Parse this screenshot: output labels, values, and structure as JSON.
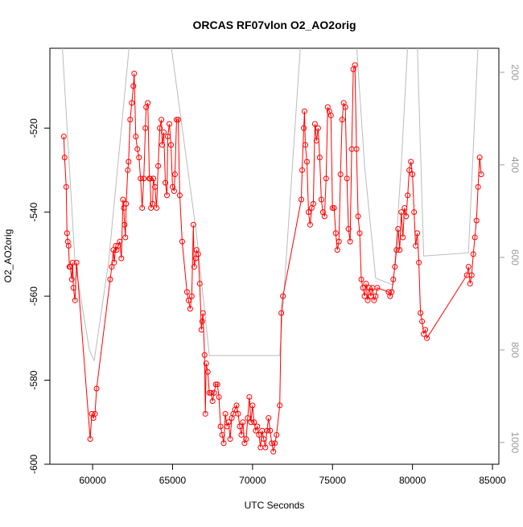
{
  "chart_data": {
    "type": "line",
    "title": "ORCAS RF07vlon O2_AO2orig",
    "xlabel": "UTC Seconds",
    "ylabel": "O2_AO2orig",
    "xlim": [
      57330,
      85400
    ],
    "xticks": [
      60000,
      65000,
      70000,
      75000,
      80000,
      85000
    ],
    "ylim": [
      -600,
      -501
    ],
    "yticks": [
      -600,
      -580,
      -560,
      -540,
      -520
    ],
    "y2lim": [
      1047,
      148
    ],
    "y2ticks": [
      200,
      400,
      600,
      800,
      1000
    ],
    "series": [
      {
        "color": "#ff0000",
        "markers": true,
        "x": [
          58200,
          58250,
          58350,
          58400,
          58450,
          58500,
          58550,
          58600,
          58700,
          58750,
          58800,
          58900,
          59000,
          59850,
          59950,
          60050,
          60150,
          60250,
          61100,
          61200,
          61300,
          61350,
          61450,
          61500,
          61600,
          61700,
          61800,
          61900,
          61950,
          62000,
          62050,
          62100,
          62200,
          62250,
          62350,
          62450,
          62550,
          62600,
          62700,
          62800,
          62900,
          63000,
          63100,
          63200,
          63300,
          63350,
          63450,
          63550,
          63600,
          63650,
          63750,
          63800,
          63900,
          64000,
          64100,
          64200,
          64300,
          64350,
          64450,
          64550,
          64650,
          64700,
          64800,
          64900,
          65000,
          65100,
          65150,
          65250,
          65350,
          65450,
          65600,
          65900,
          66000,
          66100,
          66200,
          66300,
          66350,
          66450,
          66500,
          66600,
          66700,
          66800,
          66850,
          66900,
          67000,
          67050,
          67100,
          67200,
          67300,
          67400,
          67500,
          67600,
          67700,
          67800,
          67900,
          68000,
          68100,
          68200,
          68300,
          68400,
          68500,
          68600,
          68700,
          68800,
          68900,
          69000,
          69100,
          69200,
          69300,
          69400,
          69500,
          69600,
          69700,
          69800,
          69900,
          70000,
          70100,
          70200,
          70300,
          70400,
          70500,
          70600,
          70700,
          70800,
          70900,
          71000,
          71100,
          71200,
          71300,
          71400,
          71500,
          71700,
          71800,
          71900,
          73050,
          73100,
          73200,
          73250,
          73300,
          73400,
          73500,
          73600,
          73700,
          73800,
          73900,
          74000,
          74100,
          74200,
          74300,
          74400,
          74500,
          74600,
          74700,
          74800,
          74900,
          75000,
          75100,
          75200,
          75300,
          75400,
          75500,
          75600,
          75700,
          75800,
          75900,
          76000,
          76100,
          76200,
          76300,
          76400,
          76500,
          76600,
          76700,
          76800,
          76900,
          77000,
          77100,
          77200,
          77300,
          77400,
          77500,
          77600,
          77700,
          77800,
          78500,
          78600,
          78700,
          78800,
          78900,
          79000,
          79100,
          79200,
          79300,
          79400,
          79500,
          79600,
          79700,
          79800,
          79900,
          80000,
          80100,
          80200,
          80300,
          80400,
          80500,
          80600,
          80700,
          80800,
          80900,
          83400,
          83500,
          83600,
          83700,
          83800,
          83900,
          84000,
          84100,
          84200,
          84300
        ],
        "values": [
          -522,
          -527,
          -534,
          -545,
          -547,
          -548,
          -553,
          -553,
          -556,
          -552,
          -558,
          -561,
          -552,
          -594,
          -588,
          -589,
          -588,
          -582,
          -556,
          -553,
          -549,
          -552,
          -548,
          -549,
          -548,
          -547,
          -551,
          -537,
          -539,
          -543,
          -546,
          -538,
          -530,
          -528,
          -518,
          -514,
          -510,
          -507,
          -522,
          -525,
          -527,
          -532,
          -539,
          -532,
          -520,
          -515,
          -514,
          -532,
          -532,
          -539,
          -538,
          -532,
          -534,
          -539,
          -529,
          -520,
          -518,
          -524,
          -521,
          -533,
          -536,
          -522,
          -519,
          -524,
          -534,
          -535,
          -531,
          -518,
          -518,
          -536,
          -547,
          -559,
          -561,
          -563,
          -560,
          -543,
          -553,
          -551,
          -549,
          -550,
          -557,
          -568,
          -566,
          -564,
          -574,
          -588,
          -576,
          -578,
          -583,
          -583,
          -585,
          -583,
          -581,
          -581,
          -584,
          -591,
          -593,
          -595,
          -588,
          -591,
          -590,
          -594,
          -589,
          -588,
          -587,
          -586,
          -588,
          -591,
          -593,
          -590,
          -595,
          -594,
          -589,
          -584,
          -590,
          -586,
          -590,
          -592,
          -591,
          -593,
          -596,
          -592,
          -594,
          -596,
          -592,
          -589,
          -592,
          -595,
          -597,
          -595,
          -593,
          -586,
          -564,
          -560,
          -537,
          -530,
          -520,
          -516,
          -524,
          -528,
          -540,
          -543,
          -539,
          -538,
          -519,
          -523,
          -520,
          -527,
          -537,
          -540,
          -541,
          -532,
          -515,
          -516,
          -517,
          -539,
          -539,
          -545,
          -549,
          -547,
          -531,
          -518,
          -514,
          -515,
          -532,
          -544,
          -547,
          -525,
          -506,
          -505,
          -525,
          -541,
          -545,
          -556,
          -558,
          -560,
          -557,
          -561,
          -558,
          -560,
          -558,
          -561,
          -560,
          -558,
          -559,
          -560,
          -559,
          -556,
          -553,
          -549,
          -544,
          -549,
          -540,
          -546,
          -539,
          -541,
          -536,
          -530,
          -528,
          -531,
          -540,
          -548,
          -545,
          -552,
          -564,
          -566,
          -569,
          -568,
          -570,
          -555,
          -553,
          -557,
          -555,
          -550,
          -546,
          -542,
          -534,
          -527,
          -531
        ]
      },
      {
        "color": "#bbbbbb",
        "axis": "y2",
        "markers": false,
        "x": [
          58100,
          58900,
          59800,
          60100,
          61000,
          62300,
          64900,
          66500,
          67300,
          71700,
          73000,
          76500,
          77000,
          77700,
          78800,
          79300,
          79700,
          80300,
          80700,
          83500,
          84100
        ],
        "values": [
          140,
          610,
          800,
          823,
          610,
          140,
          140,
          550,
          812,
          812,
          140,
          140,
          400,
          645,
          660,
          400,
          140,
          140,
          597,
          590,
          140
        ]
      }
    ]
  }
}
